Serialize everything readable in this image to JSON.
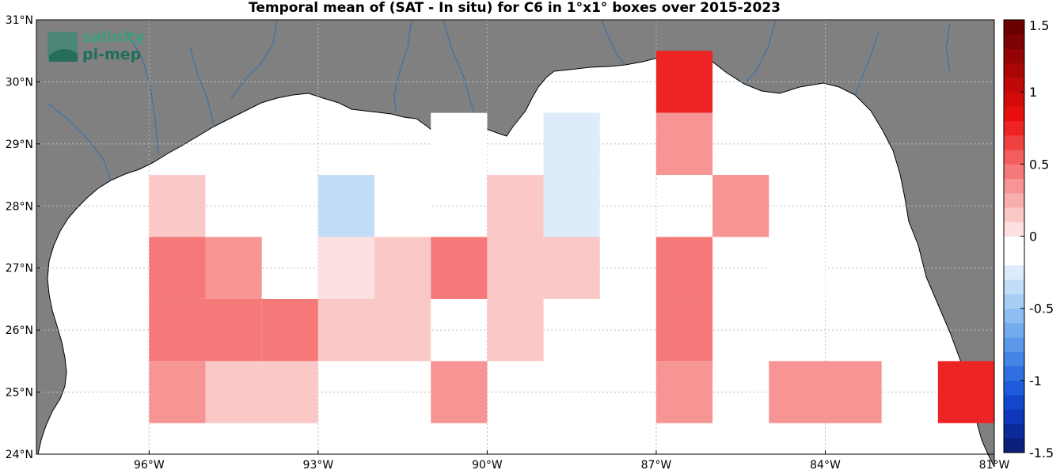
{
  "title": "Temporal mean of (SAT - In situ) for C6 in 1°x1° boxes over 2015-2023",
  "logo": {
    "line1": "salinity",
    "line2": "pi-mep"
  },
  "colors": {
    "land": "#808080",
    "ocean": "#ffffff",
    "rivers": "#2e6fb0",
    "grid": "#bdbdbd"
  },
  "map": {
    "lon_range": [
      -98,
      -81
    ],
    "lat_range": [
      24,
      31
    ],
    "x_ticks": [
      {
        "value": -96,
        "label": "96°W"
      },
      {
        "value": -93,
        "label": "93°W"
      },
      {
        "value": -90,
        "label": "90°W"
      },
      {
        "value": -87,
        "label": "87°W"
      },
      {
        "value": -84,
        "label": "84°W"
      },
      {
        "value": -81,
        "label": "81°W"
      }
    ],
    "y_ticks": [
      {
        "value": 24,
        "label": "24°N"
      },
      {
        "value": 25,
        "label": "25°N"
      },
      {
        "value": 26,
        "label": "26°N"
      },
      {
        "value": 27,
        "label": "27°N"
      },
      {
        "value": 28,
        "label": "28°N"
      },
      {
        "value": 29,
        "label": "29°N"
      },
      {
        "value": 30,
        "label": "30°N"
      },
      {
        "value": 31,
        "label": "31°N"
      }
    ],
    "cells": [
      {
        "lon": -95.5,
        "lat": 28,
        "value": 0.15
      },
      {
        "lon": -92.5,
        "lat": 28,
        "value": -0.3
      },
      {
        "lon": -91.5,
        "lat": 28,
        "value": -0.15
      },
      {
        "lon": -89.5,
        "lat": 28,
        "value": 0.15
      },
      {
        "lon": -88.5,
        "lat": 28,
        "value": -0.25
      },
      {
        "lon": -88.5,
        "lat": 29,
        "value": -0.25
      },
      {
        "lon": -90.5,
        "lat": 29,
        "value": -0.15
      },
      {
        "lon": -86.5,
        "lat": 30,
        "value": 0.75
      },
      {
        "lon": -86.5,
        "lat": 29,
        "value": 0.3
      },
      {
        "lon": -85.5,
        "lat": 28,
        "value": 0.3
      },
      {
        "lon": -95.5,
        "lat": 27,
        "value": 0.45
      },
      {
        "lon": -94.5,
        "lat": 27,
        "value": 0.3
      },
      {
        "lon": -92.5,
        "lat": 27,
        "value": 0.0
      },
      {
        "lon": -92.5,
        "lat": 26.5,
        "value": 0.05
      },
      {
        "lon": -91.5,
        "lat": 27,
        "value": 0.15
      },
      {
        "lon": -90.5,
        "lat": 27,
        "value": 0.45
      },
      {
        "lon": -89.5,
        "lat": 27,
        "value": 0.15
      },
      {
        "lon": -88.5,
        "lat": 27,
        "value": 0.15
      },
      {
        "lon": -86.5,
        "lat": 27,
        "value": 0.45
      },
      {
        "lon": -84.5,
        "lat": 27,
        "value": -0.15
      },
      {
        "lon": -95.5,
        "lat": 26,
        "value": 0.45
      },
      {
        "lon": -94.5,
        "lat": 26,
        "value": 0.45
      },
      {
        "lon": -93.5,
        "lat": 26,
        "value": 0.45
      },
      {
        "lon": -92.5,
        "lat": 26,
        "value": 0.15
      },
      {
        "lon": -91.5,
        "lat": 26,
        "value": 0.15
      },
      {
        "lon": -89.5,
        "lat": 26,
        "value": 0.15
      },
      {
        "lon": -86.5,
        "lat": 26,
        "value": 0.45
      },
      {
        "lon": -95.5,
        "lat": 25,
        "value": 0.3
      },
      {
        "lon": -94.5,
        "lat": 25,
        "value": 0.15
      },
      {
        "lon": -93.5,
        "lat": 25,
        "value": 0.15
      },
      {
        "lon": -90.5,
        "lat": 25,
        "value": 0.3
      },
      {
        "lon": -86.5,
        "lat": 25,
        "value": 0.3
      },
      {
        "lon": -84.5,
        "lat": 25,
        "value": 0.3
      },
      {
        "lon": -83.5,
        "lat": 25,
        "value": 0.3
      },
      {
        "lon": -81.5,
        "lat": 25,
        "value": 0.75
      }
    ]
  },
  "colorbar": {
    "min": -1.5,
    "max": 1.5,
    "tick_labels": [
      {
        "value": 1.5,
        "label": "1.5"
      },
      {
        "value": 1,
        "label": "1"
      },
      {
        "value": 0.5,
        "label": "0.5"
      },
      {
        "value": 0,
        "label": "0"
      },
      {
        "value": -0.5,
        "label": "-0.5"
      },
      {
        "value": -1,
        "label": "-1"
      },
      {
        "value": -1.5,
        "label": "-1.5"
      }
    ],
    "bands": [
      "#0a1f7a",
      "#0c2a99",
      "#0e36b8",
      "#1246cc",
      "#1e5ad9",
      "#2f6ee0",
      "#4484e6",
      "#5b98ea",
      "#74abee",
      "#8dbdf2",
      "#a7cdf5",
      "#c2ddf8",
      "#ddebfb",
      "#ffffff",
      "#ffffff",
      "#fde0e0",
      "#fbc8c8",
      "#f9aeae",
      "#f79494",
      "#f57979",
      "#f35d5d",
      "#f04141",
      "#ee2424",
      "#e60e0e",
      "#d40b0b",
      "#c00808",
      "#aa0606",
      "#940404",
      "#7e0202",
      "#6a0000"
    ]
  }
}
